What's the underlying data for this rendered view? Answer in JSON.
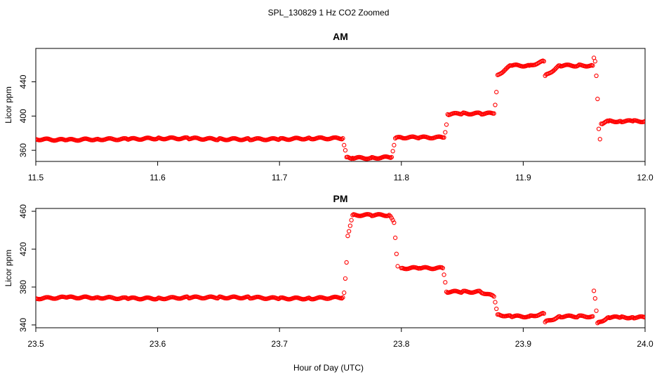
{
  "figure": {
    "title": "SPL_130829  1 Hz CO2 Zoomed",
    "xlabel": "Hour of Day (UTC)"
  },
  "colors": {
    "points": "#ff0000",
    "axes": "#000000"
  },
  "chart_data": [
    {
      "type": "scatter",
      "title": "AM",
      "ylabel": "Licor ppm",
      "xlim": [
        11.5,
        12.0
      ],
      "ylim": [
        347,
        479
      ],
      "xticks": [
        11.5,
        11.6,
        11.7,
        11.8,
        11.9,
        12.0
      ],
      "xtick_labels": [
        "11.5",
        "11.6",
        "11.7",
        "11.8",
        "11.9",
        "12.0"
      ],
      "yticks": [
        360,
        400,
        440
      ],
      "ytick_labels": [
        "360",
        "400",
        "440"
      ],
      "grid": false,
      "series": [
        {
          "x": [
            11.5,
            11.525,
            11.55,
            11.575,
            11.6,
            11.625,
            11.65,
            11.675,
            11.7,
            11.725,
            11.752,
            11.753,
            11.754,
            11.755,
            11.76,
            11.775,
            11.792,
            11.793,
            11.794,
            11.795,
            11.8,
            11.815,
            11.835,
            11.836,
            11.837,
            11.838,
            11.85,
            11.865,
            11.876,
            11.877,
            11.878,
            11.879,
            11.89,
            11.905,
            11.917,
            11.918,
            11.93,
            11.945,
            11.957,
            11.958,
            11.959,
            11.96,
            11.961,
            11.962,
            11.963,
            11.964,
            11.97,
            11.98,
            11.99,
            12.0
          ],
          "y": [
            373,
            372,
            373,
            373,
            374,
            374,
            373,
            373,
            373,
            374,
            374,
            366,
            360,
            352,
            351,
            351,
            352,
            359,
            366,
            374,
            375,
            375,
            375,
            381,
            390,
            402,
            403,
            403,
            403,
            413,
            428,
            448,
            459,
            459,
            464,
            447,
            459,
            459,
            459,
            468,
            464,
            447,
            420,
            385,
            373,
            391,
            394,
            394,
            394,
            394
          ]
        }
      ]
    },
    {
      "type": "scatter",
      "title": "PM",
      "ylabel": "Licor ppm",
      "xlim": [
        23.5,
        24.0
      ],
      "ylim": [
        337,
        463
      ],
      "xticks": [
        23.5,
        23.6,
        23.7,
        23.8,
        23.9,
        24.0
      ],
      "xtick_labels": [
        "23.5",
        "23.6",
        "23.7",
        "23.8",
        "23.9",
        "24.0"
      ],
      "yticks": [
        340,
        380,
        420,
        460
      ],
      "ytick_labels": [
        "340",
        "380",
        "420",
        "460"
      ],
      "grid": false,
      "series": [
        {
          "x": [
            23.5,
            23.525,
            23.55,
            23.575,
            23.6,
            23.625,
            23.65,
            23.675,
            23.7,
            23.725,
            23.752,
            23.753,
            23.754,
            23.755,
            23.756,
            23.76,
            23.775,
            23.79,
            23.794,
            23.795,
            23.796,
            23.797,
            23.8,
            23.815,
            23.834,
            23.835,
            23.836,
            23.837,
            23.85,
            23.865,
            23.876,
            23.877,
            23.878,
            23.879,
            23.89,
            23.905,
            23.917,
            23.918,
            23.93,
            23.945,
            23.957,
            23.958,
            23.959,
            23.96,
            23.961,
            23.97,
            23.98,
            23.99,
            24.0
          ],
          "y": [
            368,
            369,
            369,
            368,
            368,
            369,
            369,
            369,
            368,
            368,
            369,
            374,
            389,
            406,
            434,
            456,
            456,
            456,
            448,
            432,
            415,
            402,
            400,
            400,
            400,
            393,
            385,
            375,
            375,
            375,
            370,
            364,
            357,
            351,
            349,
            349,
            352,
            343,
            349,
            349,
            349,
            376,
            368,
            355,
            342,
            348,
            348,
            348,
            348
          ]
        }
      ]
    }
  ]
}
